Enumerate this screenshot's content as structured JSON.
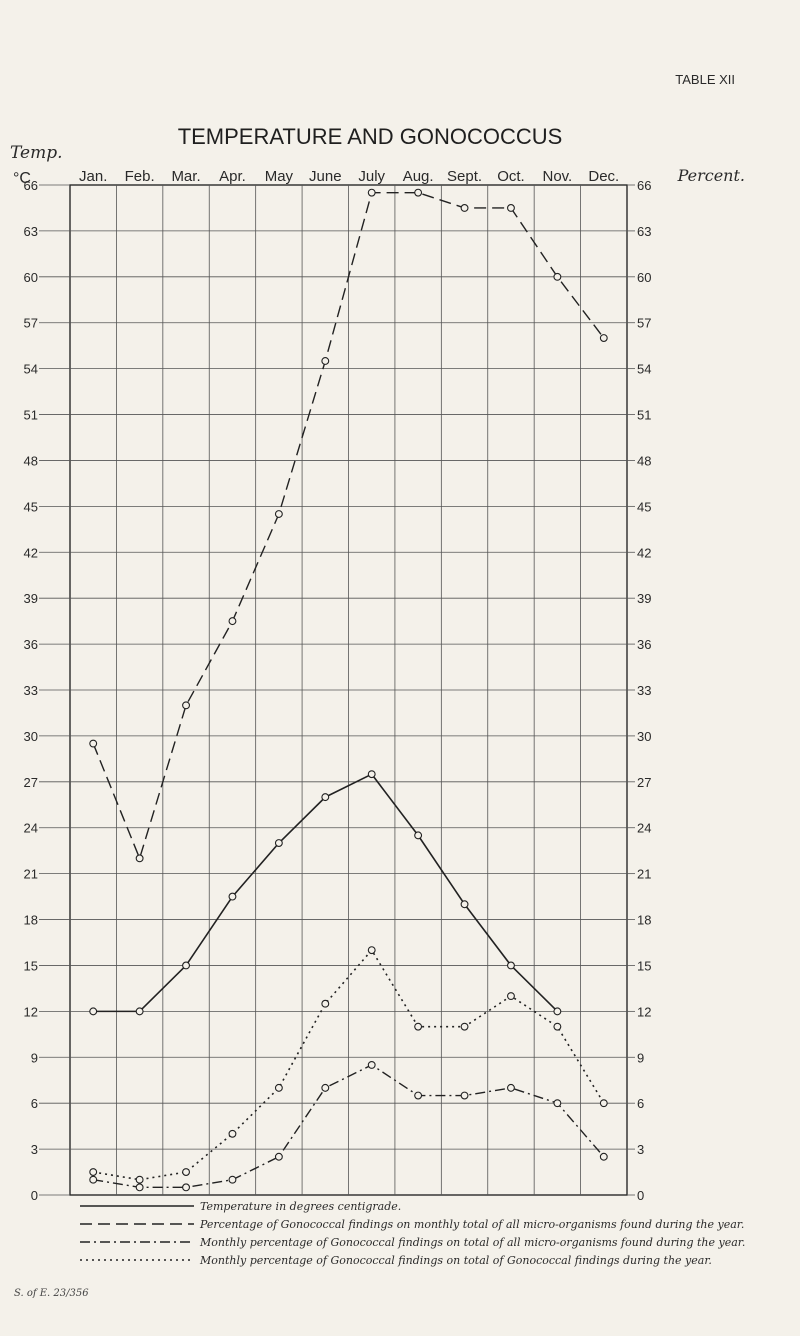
{
  "page": {
    "table_label": "TABLE XII",
    "title": "TEMPERATURE AND GONOCOCCUS",
    "left_axis_label_1": "Temp.",
    "left_axis_label_2": "°C",
    "right_axis_label": "Percent.",
    "footer_code": "S. of E. 23/356"
  },
  "chart_data": {
    "type": "line",
    "categories": [
      "Jan.",
      "Feb.",
      "Mar.",
      "Apr.",
      "May",
      "June",
      "July",
      "Aug.",
      "Sept.",
      "Oct.",
      "Nov.",
      "Dec."
    ],
    "left_ticks": [
      66,
      63,
      60,
      57,
      54,
      51,
      48,
      45,
      42,
      39,
      36,
      33,
      30,
      27,
      24,
      21,
      18,
      15,
      12,
      9,
      6,
      3,
      0
    ],
    "right_ticks": [
      66,
      63,
      60,
      57,
      54,
      51,
      48,
      45,
      42,
      39,
      36,
      33,
      30,
      27,
      24,
      21,
      18,
      15,
      12,
      9,
      6,
      3,
      0
    ],
    "ylim": [
      0,
      66
    ],
    "grid": true,
    "legend_position": "bottom",
    "series": [
      {
        "name": "Temperature in degrees centigrade.",
        "style": "solid",
        "values": [
          [
            0.5,
            12
          ],
          [
            1.5,
            12
          ],
          [
            2.5,
            15
          ],
          [
            3.5,
            19.5
          ],
          [
            4.5,
            23
          ],
          [
            5.5,
            26
          ],
          [
            6.5,
            27.5
          ],
          [
            7.5,
            23.5
          ],
          [
            8.5,
            19
          ],
          [
            9.5,
            15
          ],
          [
            10.5,
            12
          ]
        ]
      },
      {
        "name": "Percentage of Gonococcal findings on monthly total of all micro-organisms found during the year.",
        "style": "dashed",
        "values": [
          [
            0.5,
            29.5
          ],
          [
            1.5,
            22
          ],
          [
            2.5,
            32
          ],
          [
            3.5,
            37.5
          ],
          [
            4.5,
            44.5
          ],
          [
            5.5,
            54.5
          ],
          [
            6.5,
            65.5
          ],
          [
            7.5,
            65.5
          ],
          [
            8.5,
            64.5
          ],
          [
            9.5,
            64.5
          ],
          [
            10.5,
            60
          ],
          [
            11.5,
            56
          ]
        ]
      },
      {
        "name": "Monthly percentage of Gonococcal findings on total of all micro-organisms found during the year.",
        "style": "dash-dot",
        "values": [
          [
            0.5,
            1
          ],
          [
            1.5,
            0.5
          ],
          [
            2.5,
            0.5
          ],
          [
            3.5,
            1
          ],
          [
            4.5,
            2.5
          ],
          [
            5.5,
            7
          ],
          [
            6.5,
            8.5
          ],
          [
            7.5,
            6.5
          ],
          [
            8.5,
            6.5
          ],
          [
            9.5,
            7
          ],
          [
            10.5,
            6
          ],
          [
            11.5,
            2.5
          ]
        ]
      },
      {
        "name": "Monthly percentage of Gonococcal findings on total of Gonococcal findings during the year.",
        "style": "dotted",
        "values": [
          [
            0.5,
            1.5
          ],
          [
            1.5,
            1
          ],
          [
            2.5,
            1.5
          ],
          [
            3.5,
            4
          ],
          [
            4.5,
            7
          ],
          [
            5.5,
            12.5
          ],
          [
            6.5,
            16
          ],
          [
            7.5,
            11
          ],
          [
            8.5,
            11
          ],
          [
            9.5,
            13
          ],
          [
            10.5,
            11
          ],
          [
            11.5,
            6
          ]
        ]
      }
    ]
  },
  "legend": [
    {
      "style": "solid",
      "label": "Temperature in degrees centigrade."
    },
    {
      "style": "dashed",
      "label": "Percentage of Gonococcal findings on monthly total of all micro-organisms found during the year."
    },
    {
      "style": "dash-dot",
      "label": "Monthly percentage of Gonococcal findings on total of all micro-organisms found during the year."
    },
    {
      "style": "dotted",
      "label": "Monthly percentage of Gonococcal findings on total of Gonococcal findings during the year."
    }
  ]
}
